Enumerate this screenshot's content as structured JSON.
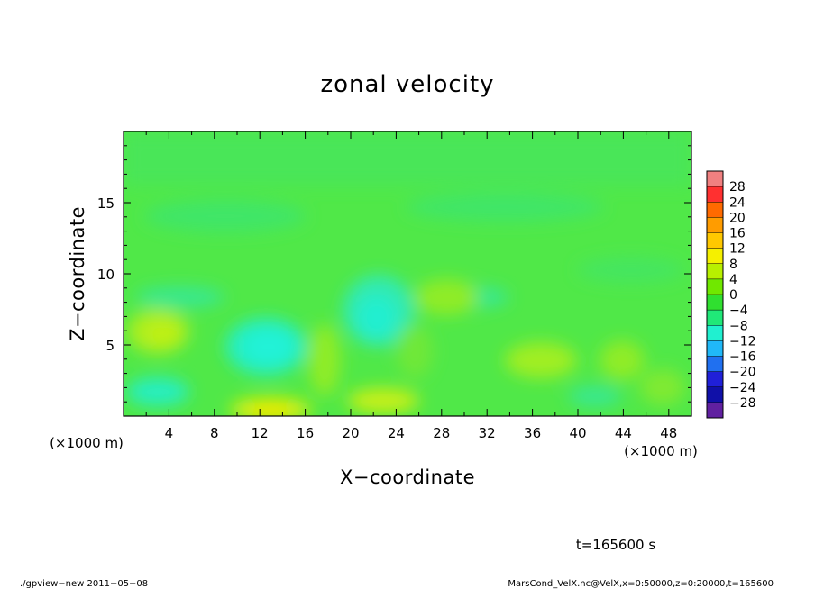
{
  "chart_data": {
    "type": "heatmap",
    "title": "zonal velocity",
    "xlabel": "X−coordinate",
    "ylabel": "Z−coordinate",
    "x_units": "(×1000 m)",
    "y_units": "(×1000 m)",
    "x_ticks": [
      "4",
      "8",
      "12",
      "16",
      "20",
      "24",
      "28",
      "32",
      "36",
      "40",
      "44",
      "48"
    ],
    "y_ticks": [
      "5",
      "10",
      "15"
    ],
    "xlim": [
      0,
      50
    ],
    "ylim": [
      0,
      20
    ],
    "colorbar": {
      "labels": [
        "28",
        "24",
        "20",
        "16",
        "12",
        "8",
        "4",
        "0",
        "−4",
        "−8",
        "−12",
        "−16",
        "−20",
        "−24",
        "−28"
      ],
      "colors": [
        "#f08080",
        "#ff3030",
        "#ff6a00",
        "#ff9c00",
        "#ffc800",
        "#f5f000",
        "#b8f000",
        "#70e800",
        "#30e030",
        "#20e878",
        "#20f0d0",
        "#20b8f8",
        "#2070f0",
        "#2020d8",
        "#1010a8",
        "#6020a0"
      ]
    },
    "time": "t=165600 s",
    "footer_left": "./gpview−new  2011−05−08",
    "footer_right": "MarsCond_VelX.nc@VelX,x=0:50000,z=0:20000,t=165600"
  }
}
